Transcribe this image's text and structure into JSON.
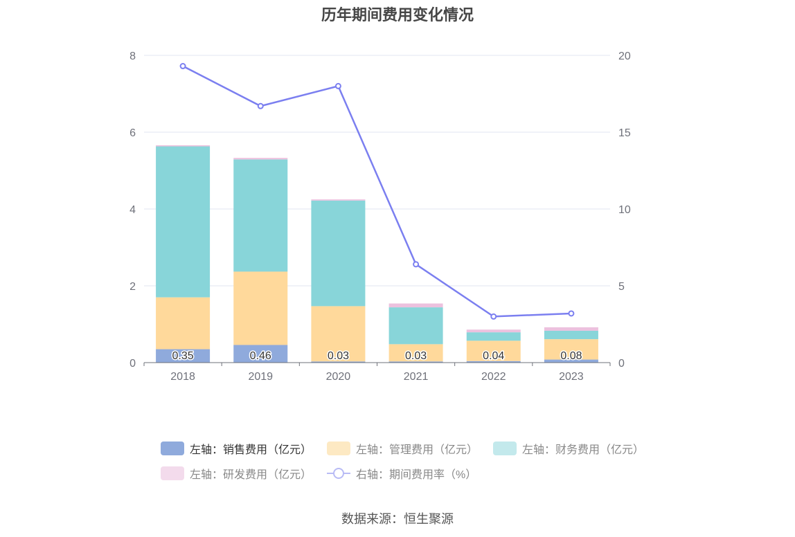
{
  "chart_data": {
    "type": "bar",
    "title": "历年期间费用变化情况",
    "categories": [
      "2018",
      "2019",
      "2020",
      "2021",
      "2022",
      "2023"
    ],
    "series": [
      {
        "name": "左轴：销售费用（亿元）",
        "axis": "left",
        "type": "bar",
        "color": "#8faadc",
        "values": [
          0.35,
          0.46,
          0.03,
          0.03,
          0.04,
          0.08
        ],
        "labels": [
          "0.35",
          "0.46",
          "0.03",
          "0.03",
          "0.04",
          "0.08"
        ]
      },
      {
        "name": "左轴：管理费用（亿元）",
        "axis": "left",
        "type": "bar",
        "color": "#ffd99b",
        "values": [
          1.35,
          1.91,
          1.44,
          0.45,
          0.53,
          0.53
        ]
      },
      {
        "name": "左轴：财务费用（亿元）",
        "axis": "left",
        "type": "bar",
        "color": "#88d5d9",
        "values": [
          3.93,
          2.92,
          2.75,
          0.96,
          0.22,
          0.22
        ]
      },
      {
        "name": "左轴：研发费用（亿元）",
        "axis": "left",
        "type": "bar",
        "color": "#ecc1de",
        "values": [
          0.03,
          0.04,
          0.03,
          0.1,
          0.07,
          0.09
        ]
      },
      {
        "name": "右轴：期间费用率（%）",
        "axis": "right",
        "type": "line",
        "color": "#7b7ff0",
        "values": [
          19.3,
          16.7,
          18.0,
          6.4,
          3.0,
          3.2
        ]
      }
    ],
    "left_axis": {
      "ylim": [
        0,
        8
      ],
      "ticks": [
        "0",
        "2",
        "4",
        "6",
        "8"
      ]
    },
    "right_axis": {
      "ylim": [
        0,
        20
      ],
      "ticks": [
        "0",
        "5",
        "10",
        "15",
        "20"
      ]
    },
    "grid": true,
    "legend_position": "bottom"
  },
  "source": "数据来源：恒生聚源"
}
